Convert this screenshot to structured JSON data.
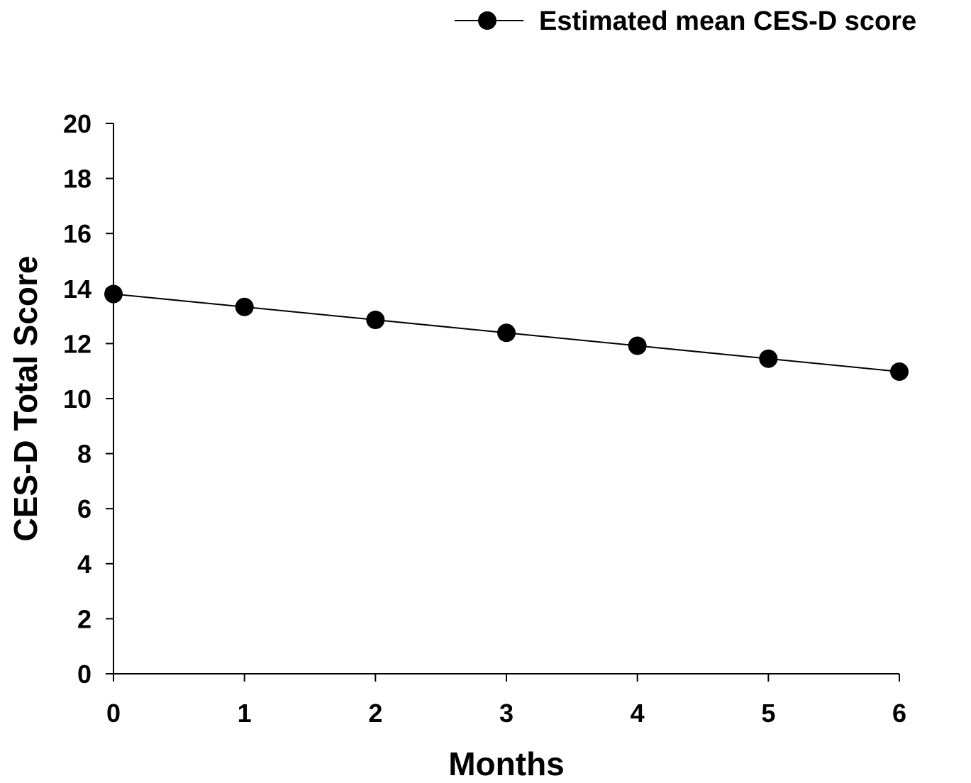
{
  "chart_data": {
    "type": "line",
    "title": "",
    "xlabel": "Months",
    "ylabel": "CES-D Total Score",
    "x": [
      0,
      1,
      2,
      3,
      4,
      5,
      6
    ],
    "x_tick_labels": [
      "0",
      "1",
      "2",
      "3",
      "4",
      "5",
      "6"
    ],
    "y_tick_labels": [
      "0",
      "2",
      "4",
      "6",
      "8",
      "10",
      "12",
      "14",
      "16",
      "18",
      "20"
    ],
    "xlim": [
      0,
      6
    ],
    "ylim": [
      0,
      20
    ],
    "grid": false,
    "legend_position": "top-right",
    "series": [
      {
        "name": "Estimated mean CES-D score",
        "values": [
          13.8,
          13.33,
          12.86,
          12.39,
          11.92,
          11.45,
          10.98
        ],
        "marker": "circle",
        "color": "#000000"
      }
    ]
  }
}
